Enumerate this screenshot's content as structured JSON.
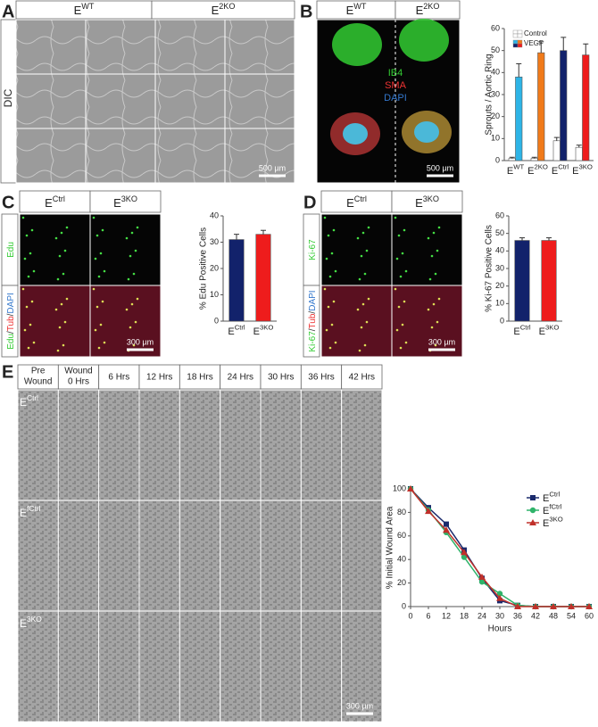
{
  "panels": {
    "A": {
      "label": "A",
      "headers": [
        {
          "base": "E",
          "sup": "WT"
        },
        {
          "base": "E",
          "sup": "2KO"
        }
      ],
      "row_label": "DIC",
      "scale_bar": "500 µm"
    },
    "B": {
      "label": "B",
      "headers": [
        {
          "base": "E",
          "sup": "WT"
        },
        {
          "base": "E",
          "sup": "2KO"
        }
      ],
      "stains": [
        "IB4",
        "SMA",
        "DAPI"
      ],
      "scale_bar": "500 µm"
    },
    "C": {
      "label": "C",
      "headers": [
        {
          "base": "E",
          "sup": "Ctrl"
        },
        {
          "base": "E",
          "sup": "3KO"
        }
      ],
      "row_labels": [
        [
          "Edu"
        ],
        [
          "Edu",
          "/",
          "Tub",
          "/",
          "DAPI"
        ]
      ],
      "scale_bar": "300 µm"
    },
    "D": {
      "label": "D",
      "headers": [
        {
          "base": "E",
          "sup": "Ctrl"
        },
        {
          "base": "E",
          "sup": "3KO"
        }
      ],
      "row_labels": [
        [
          "Ki-67"
        ],
        [
          "Ki-67",
          "/",
          "Tub",
          "/",
          "DAPI"
        ]
      ],
      "scale_bar": "300 µm"
    },
    "E": {
      "label": "E",
      "time_headers": [
        [
          "Pre",
          "Wound"
        ],
        [
          "Wound",
          "0 Hrs"
        ],
        [
          "6 Hrs"
        ],
        [
          "12 Hrs"
        ],
        [
          "18 Hrs"
        ],
        [
          "24 Hrs"
        ],
        [
          "30 Hrs"
        ],
        [
          "36 Hrs"
        ],
        [
          "42 Hrs"
        ]
      ],
      "row_labels": [
        {
          "base": "E",
          "sup": "Ctrl"
        },
        {
          "base": "E",
          "sup": "fCtrl"
        },
        {
          "base": "E",
          "sup": "3KO"
        }
      ],
      "scale_bar": "300 µm"
    }
  },
  "chart_data": [
    {
      "type": "bar",
      "ylabel": "Sprouts / Aortic Ring",
      "categories": [
        {
          "base": "E",
          "sup": "WT"
        },
        {
          "base": "E",
          "sup": "2KO"
        },
        {
          "base": "E",
          "sup": "Ctrl"
        },
        {
          "base": "E",
          "sup": "3KO"
        }
      ],
      "series": [
        {
          "name": "Control",
          "color": "#ffffff",
          "values": [
            1,
            1,
            9,
            6
          ],
          "errors": [
            0.5,
            0.5,
            1.5,
            1
          ]
        },
        {
          "name": "VEGF",
          "colors": [
            "#2eb4e6",
            "#f07a1a",
            "#12226b",
            "#ee1c1c"
          ],
          "values": [
            38,
            49,
            50,
            48
          ],
          "errors": [
            6,
            5,
            6,
            5
          ]
        }
      ],
      "ylim": [
        0,
        60
      ],
      "yticks": [
        0,
        10,
        20,
        30,
        40,
        50,
        60
      ]
    },
    {
      "type": "bar",
      "ylabel": "% Edu Positive Cells",
      "categories": [
        {
          "base": "E",
          "sup": "Ctrl"
        },
        {
          "base": "E",
          "sup": "3KO"
        }
      ],
      "values": [
        31,
        33
      ],
      "errors": [
        2,
        1.5
      ],
      "colors": [
        "#12226b",
        "#ee1c1c"
      ],
      "ylim": [
        0,
        40
      ],
      "yticks": [
        0,
        10,
        20,
        30,
        40
      ]
    },
    {
      "type": "bar",
      "ylabel": "% Ki-67 Positive Cells",
      "categories": [
        {
          "base": "E",
          "sup": "Ctrl"
        },
        {
          "base": "E",
          "sup": "3KO"
        }
      ],
      "values": [
        46,
        46
      ],
      "errors": [
        1.5,
        1.5
      ],
      "colors": [
        "#12226b",
        "#ee1c1c"
      ],
      "ylim": [
        0,
        60
      ],
      "yticks": [
        0,
        10,
        20,
        30,
        40,
        50,
        60
      ]
    },
    {
      "type": "line",
      "xlabel": "Hours",
      "ylabel": "% Initial Wound Area",
      "x": [
        0,
        6,
        12,
        18,
        24,
        30,
        36,
        42,
        48,
        54,
        60
      ],
      "series": [
        {
          "name": {
            "base": "E",
            "sup": "Ctrl"
          },
          "color": "#1a2a6c",
          "marker": "square",
          "values": [
            100,
            84,
            70,
            48,
            24,
            5,
            1,
            0,
            0,
            0,
            0
          ]
        },
        {
          "name": {
            "base": "E",
            "sup": "fCtrl"
          },
          "color": "#2fb36a",
          "marker": "circle",
          "values": [
            100,
            82,
            63,
            42,
            21,
            11,
            1,
            0,
            0,
            0,
            0
          ]
        },
        {
          "name": {
            "base": "E",
            "sup": "3KO"
          },
          "color": "#c0302a",
          "marker": "triangle",
          "values": [
            100,
            81,
            65,
            46,
            25,
            7,
            0,
            0,
            0,
            0,
            0
          ]
        }
      ],
      "xlim": [
        0,
        60
      ],
      "xticks": [
        0,
        6,
        12,
        18,
        24,
        30,
        36,
        42,
        48,
        54,
        60
      ],
      "ylim": [
        0,
        100
      ],
      "yticks": [
        0,
        20,
        40,
        60,
        80,
        100
      ]
    }
  ]
}
